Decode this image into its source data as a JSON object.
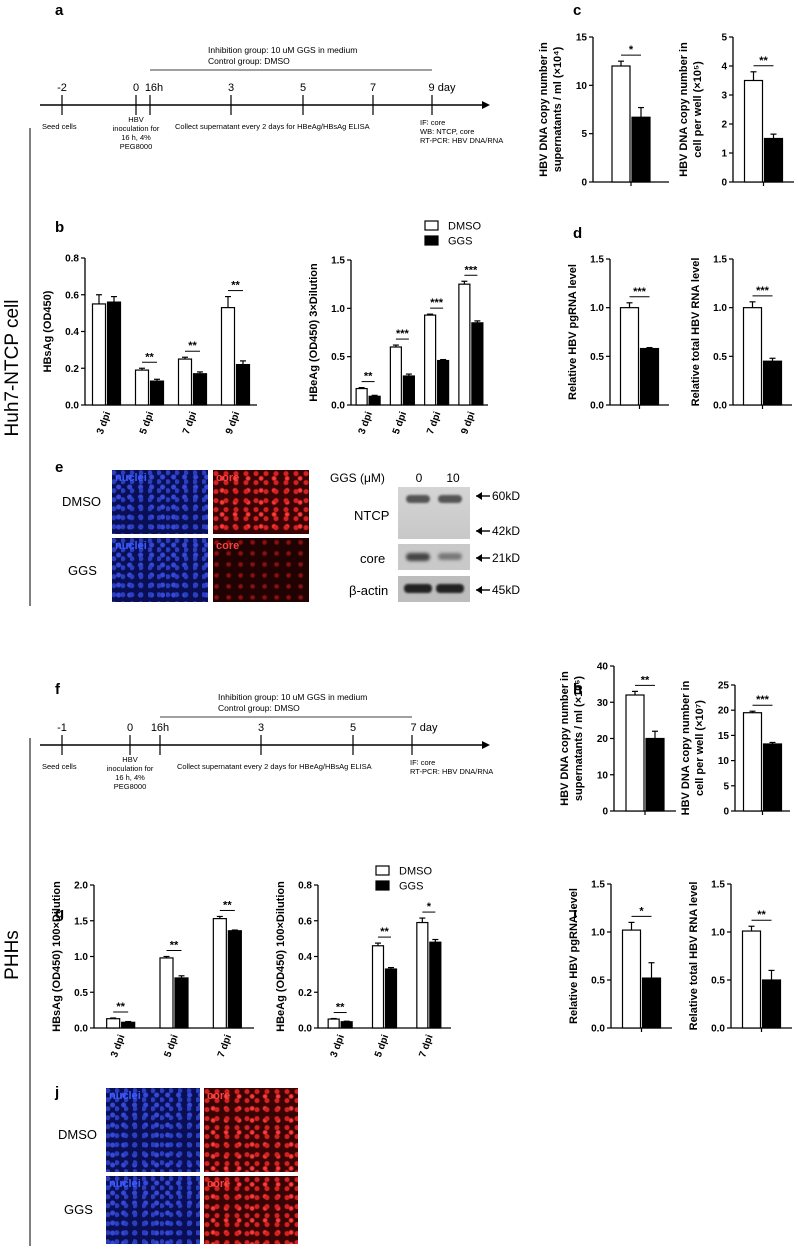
{
  "row_labels": {
    "top": "Huh7-NTCP cell",
    "bottom": "PHHs"
  },
  "panel_letters": [
    "a",
    "b",
    "c",
    "d",
    "e",
    "f",
    "g",
    "h",
    "i",
    "j"
  ],
  "timeline_a": {
    "ticks": [
      "-2",
      "0",
      "16h",
      "3",
      "5",
      "7",
      "9 day"
    ],
    "top_line1": "Inhibition  group: 10 uM GGS in medium",
    "top_line2": "Control group: DMSO",
    "seed": "Seed cells",
    "inoc": [
      "HBV",
      "inoculation for",
      "16 h, 4%",
      "PEG8000"
    ],
    "collect": "Collect supernatant every 2 days for HBeAg/HBsAg ELISA",
    "end": [
      "IF∶ core",
      "WB: NTCP, core",
      "RT-PCR: HBV DNA/RNA"
    ]
  },
  "timeline_f": {
    "ticks": [
      "-1",
      "0",
      "16h",
      "3",
      "5",
      "7 day"
    ],
    "top_line1": "Inhibition  group: 10 uM GGS in medium",
    "top_line2": "Control group: DMSO",
    "seed": "Seed cells",
    "inoc": [
      "HBV",
      "inoculation for",
      "16 h, 4%",
      "PEG8000"
    ],
    "collect": "Collect supernatant every 2 days for HBeAg/HBsAg ELISA",
    "end": [
      "IF∶ core",
      "RT-PCR: HBV DNA/RNA"
    ]
  },
  "legend": {
    "dmso": "DMSO",
    "ggs": "GGS"
  },
  "colors": {
    "dmso": "#ffffff",
    "ggs": "#000000",
    "stroke": "#000000"
  },
  "panel_e": {
    "rows": [
      "DMSO",
      "GGS"
    ],
    "stain": [
      "nuclei",
      "core"
    ],
    "ggs_label": "GGS (μM)",
    "lanes": [
      "0",
      "10"
    ],
    "blots": [
      "NTCP",
      "core",
      "β-actin"
    ],
    "markers": [
      "60kD",
      "42kD",
      "21kD",
      "45kD"
    ]
  },
  "panel_j": {
    "rows": [
      "DMSO",
      "GGS"
    ],
    "stain": [
      "nuclei",
      "core"
    ]
  },
  "chart_data": [
    {
      "id": "b1",
      "type": "bar",
      "categories": [
        "3 dpi",
        "5 dpi",
        "7 dpi",
        "9 dpi"
      ],
      "ylabel": "HBsAg (OD450)",
      "ylim": [
        0,
        0.8
      ],
      "yticks": [
        "0.0",
        "0.2",
        "0.4",
        "0.6",
        "0.8"
      ],
      "series": [
        {
          "name": "DMSO",
          "values": [
            0.55,
            0.19,
            0.25,
            0.53
          ],
          "err": [
            0.05,
            0.01,
            0.01,
            0.06
          ]
        },
        {
          "name": "GGS",
          "values": [
            0.56,
            0.13,
            0.17,
            0.22
          ],
          "err": [
            0.03,
            0.01,
            0.01,
            0.02
          ]
        }
      ],
      "sig": [
        "",
        "**",
        "**",
        "**"
      ]
    },
    {
      "id": "b2",
      "type": "bar",
      "categories": [
        "3 dpi",
        "5 dpi",
        "7 dpi",
        "9 dpi"
      ],
      "ylabel": "HBeAg (OD450) 3×Dilution",
      "ylim": [
        0,
        1.5
      ],
      "yticks": [
        "0.0",
        "0.5",
        "1.0",
        "1.5"
      ],
      "series": [
        {
          "name": "DMSO",
          "values": [
            0.17,
            0.6,
            0.93,
            1.25
          ],
          "err": [
            0.01,
            0.02,
            0.01,
            0.03
          ]
        },
        {
          "name": "GGS",
          "values": [
            0.09,
            0.3,
            0.46,
            0.85
          ],
          "err": [
            0.01,
            0.02,
            0.01,
            0.02
          ]
        }
      ],
      "sig": [
        "**",
        "***",
        "***",
        "***"
      ]
    },
    {
      "id": "c1",
      "type": "bar",
      "categories": [
        ""
      ],
      "ylabel": [
        "HBV DNA copy number in",
        "supernatants / ml (×10⁴)"
      ],
      "ylim": [
        0,
        15
      ],
      "yticks": [
        "0",
        "5",
        "10",
        "15"
      ],
      "series": [
        {
          "name": "DMSO",
          "values": [
            12
          ],
          "err": [
            0.5
          ]
        },
        {
          "name": "GGS",
          "values": [
            6.7
          ],
          "err": [
            1
          ]
        }
      ],
      "sig": [
        "*"
      ]
    },
    {
      "id": "c2",
      "type": "bar",
      "categories": [
        ""
      ],
      "ylabel": [
        "HBV DNA copy number in",
        "cell per well (×10⁵)"
      ],
      "ylim": [
        0,
        5
      ],
      "yticks": [
        "0",
        "1",
        "2",
        "3",
        "4",
        "5"
      ],
      "series": [
        {
          "name": "DMSO",
          "values": [
            3.5
          ],
          "err": [
            0.3
          ]
        },
        {
          "name": "GGS",
          "values": [
            1.5
          ],
          "err": [
            0.15
          ]
        }
      ],
      "sig": [
        "**"
      ]
    },
    {
      "id": "d1",
      "type": "bar",
      "categories": [
        ""
      ],
      "ylabel": "Relative HBV pgRNA level",
      "ylim": [
        0,
        1.5
      ],
      "yticks": [
        "0.0",
        "0.5",
        "1.0",
        "1.5"
      ],
      "series": [
        {
          "name": "DMSO",
          "values": [
            1.0
          ],
          "err": [
            0.05
          ]
        },
        {
          "name": "GGS",
          "values": [
            0.58
          ],
          "err": [
            0.01
          ]
        }
      ],
      "sig": [
        "***"
      ]
    },
    {
      "id": "d2",
      "type": "bar",
      "categories": [
        ""
      ],
      "ylabel": "Relative total HBV RNA level",
      "ylim": [
        0,
        1.5
      ],
      "yticks": [
        "0.0",
        "0.5",
        "1.0",
        "1.5"
      ],
      "series": [
        {
          "name": "DMSO",
          "values": [
            1.0
          ],
          "err": [
            0.06
          ]
        },
        {
          "name": "GGS",
          "values": [
            0.45
          ],
          "err": [
            0.03
          ]
        }
      ],
      "sig": [
        "***"
      ]
    },
    {
      "id": "g1",
      "type": "bar",
      "categories": [
        "3 dpi",
        "5 dpi",
        "7 dpi"
      ],
      "ylabel": "HBsAg (OD450) 100×Dilution",
      "ylim": [
        0,
        2.0
      ],
      "yticks": [
        "0.0",
        "0.5",
        "1.0",
        "1.5",
        "2.0"
      ],
      "series": [
        {
          "name": "DMSO",
          "values": [
            0.13,
            0.98,
            1.53
          ],
          "err": [
            0.01,
            0.02,
            0.03
          ]
        },
        {
          "name": "GGS",
          "values": [
            0.08,
            0.7,
            1.36
          ],
          "err": [
            0.01,
            0.03,
            0.01
          ]
        }
      ],
      "sig": [
        "**",
        "**",
        "**"
      ]
    },
    {
      "id": "g2",
      "type": "bar",
      "categories": [
        "3 dpi",
        "5 dpi",
        "7 dpi"
      ],
      "ylabel": "HBeAg (OD450) 100×Dilution",
      "ylim": [
        0,
        0.8
      ],
      "yticks": [
        "0.0",
        "0.2",
        "0.4",
        "0.6",
        "0.8"
      ],
      "series": [
        {
          "name": "DMSO",
          "values": [
            0.05,
            0.46,
            0.59
          ],
          "err": [
            0.003,
            0.015,
            0.025
          ]
        },
        {
          "name": "GGS",
          "values": [
            0.035,
            0.33,
            0.48
          ],
          "err": [
            0.003,
            0.008,
            0.015
          ]
        }
      ],
      "sig": [
        "**",
        "**",
        "*"
      ]
    },
    {
      "id": "h1",
      "type": "bar",
      "categories": [
        ""
      ],
      "ylabel": [
        "HBV DNA copy number in",
        "supernatants / ml (×10⁶)"
      ],
      "ylim": [
        0,
        40
      ],
      "yticks": [
        "0",
        "10",
        "20",
        "30",
        "40"
      ],
      "series": [
        {
          "name": "DMSO",
          "values": [
            32
          ],
          "err": [
            1
          ]
        },
        {
          "name": "GGS",
          "values": [
            20
          ],
          "err": [
            2
          ]
        }
      ],
      "sig": [
        "**"
      ]
    },
    {
      "id": "h2",
      "type": "bar",
      "categories": [
        ""
      ],
      "ylabel": [
        "HBV DNA copy number in",
        "cell per well (×10⁷)"
      ],
      "ylim": [
        0,
        25
      ],
      "yticks": [
        "0",
        "5",
        "10",
        "15",
        "20",
        "25"
      ],
      "series": [
        {
          "name": "DMSO",
          "values": [
            19.5
          ],
          "err": [
            0.3
          ]
        },
        {
          "name": "GGS",
          "values": [
            13.3
          ],
          "err": [
            0.3
          ]
        }
      ],
      "sig": [
        "***"
      ]
    },
    {
      "id": "i1",
      "type": "bar",
      "categories": [
        ""
      ],
      "ylabel": "Relative HBV pgRNA level",
      "ylim": [
        0,
        1.5
      ],
      "yticks": [
        "0.0",
        "0.5",
        "1.0",
        "1.5"
      ],
      "series": [
        {
          "name": "DMSO",
          "values": [
            1.02
          ],
          "err": [
            0.08
          ]
        },
        {
          "name": "GGS",
          "values": [
            0.52
          ],
          "err": [
            0.16
          ]
        }
      ],
      "sig": [
        "*"
      ]
    },
    {
      "id": "i2",
      "type": "bar",
      "categories": [
        ""
      ],
      "ylabel": "Relative total HBV RNA level",
      "ylim": [
        0,
        1.5
      ],
      "yticks": [
        "0.0",
        "0.5",
        "1.0",
        "1.5"
      ],
      "series": [
        {
          "name": "DMSO",
          "values": [
            1.01
          ],
          "err": [
            0.05
          ]
        },
        {
          "name": "GGS",
          "values": [
            0.5
          ],
          "err": [
            0.1
          ]
        }
      ],
      "sig": [
        "**"
      ]
    }
  ]
}
